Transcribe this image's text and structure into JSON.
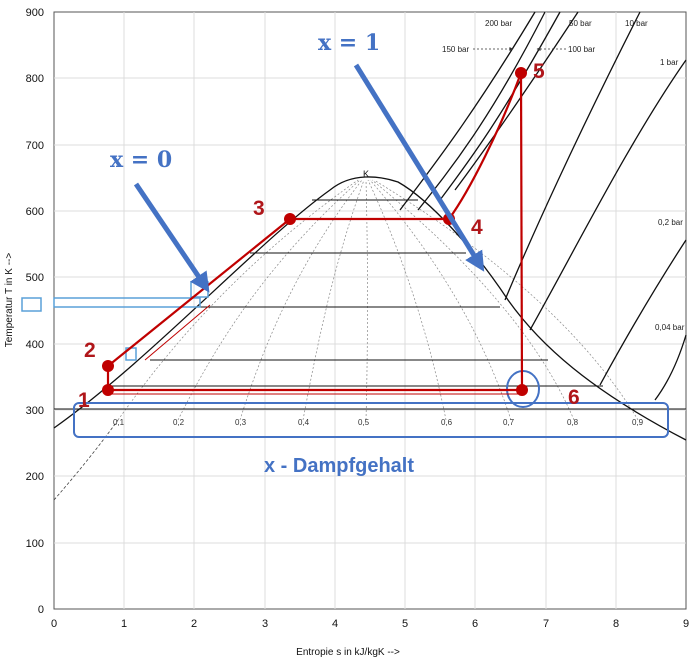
{
  "axes": {
    "x_title": "Entropie s in kJ/kgK  -->",
    "y_title": "Temperatur T in K  -->",
    "x_ticks": [
      "0",
      "1",
      "2",
      "3",
      "4",
      "5",
      "6",
      "7",
      "8",
      "9"
    ],
    "y_ticks": [
      "0",
      "100",
      "200",
      "300",
      "400",
      "500",
      "600",
      "700",
      "800",
      "900"
    ]
  },
  "critical_point_label": "K",
  "pressure_labels": {
    "p200": "200 bar",
    "p150": "150 bar",
    "p50": "50 bar",
    "p100": "100 bar",
    "p10": "10 bar",
    "p1": "1 bar",
    "p02": "0,2 bar",
    "p004": "0,04 bar"
  },
  "quality_labels": [
    "0,1",
    "0,2",
    "0,3",
    "0,4",
    "0,5",
    "0,6",
    "0,7",
    "0,8",
    "0,9"
  ],
  "annotations": {
    "x0_label": "x = 0",
    "x1_label": "x = 1",
    "dampfgehalt_label": "x - Dampfgehalt"
  },
  "process_points": [
    "1",
    "2",
    "3",
    "4",
    "5",
    "6"
  ],
  "colors": {
    "process": "#c00000",
    "annotation": "#4472c4",
    "box": "#5aa0d8"
  }
}
